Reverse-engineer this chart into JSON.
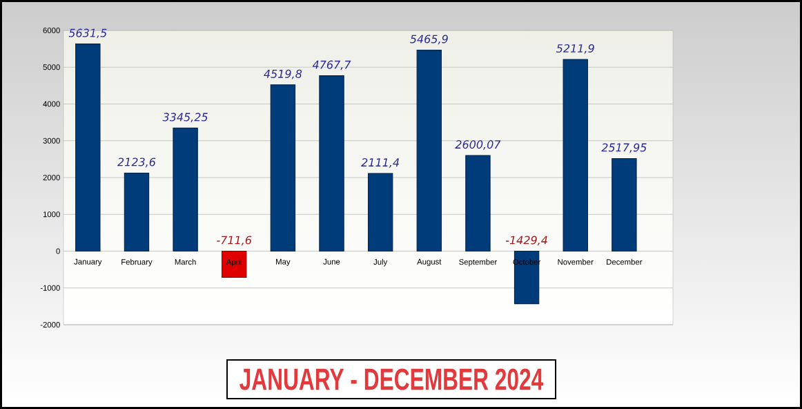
{
  "chart_data": {
    "type": "bar",
    "title": "JANUARY - DECEMBER 2024",
    "categories": [
      "January",
      "February",
      "March",
      "April",
      "May",
      "June",
      "July",
      "August",
      "September",
      "October",
      "November",
      "December"
    ],
    "values": [
      5631.5,
      2123.6,
      3345.25,
      -711.6,
      4519.8,
      4767.7,
      2111.4,
      5465.9,
      2600.07,
      -1429.4,
      5211.9,
      2517.95
    ],
    "value_labels": [
      "5631,5",
      "2123,6",
      "3345,25",
      "-711,6",
      "4519,8",
      "4767,7",
      "2111,4",
      "5465,9",
      "2600,07",
      "-1429,4",
      "5211,9",
      "2517,95"
    ],
    "colors": [
      "#003b7a",
      "#003b7a",
      "#003b7a",
      "#e00000",
      "#003b7a",
      "#003b7a",
      "#003b7a",
      "#003b7a",
      "#003b7a",
      "#003b7a",
      "#003b7a",
      "#003b7a"
    ],
    "ylim": [
      -2000,
      6000
    ],
    "yticks": [
      -2000,
      -1000,
      0,
      1000,
      2000,
      3000,
      4000,
      5000,
      6000
    ],
    "grid": "y"
  }
}
